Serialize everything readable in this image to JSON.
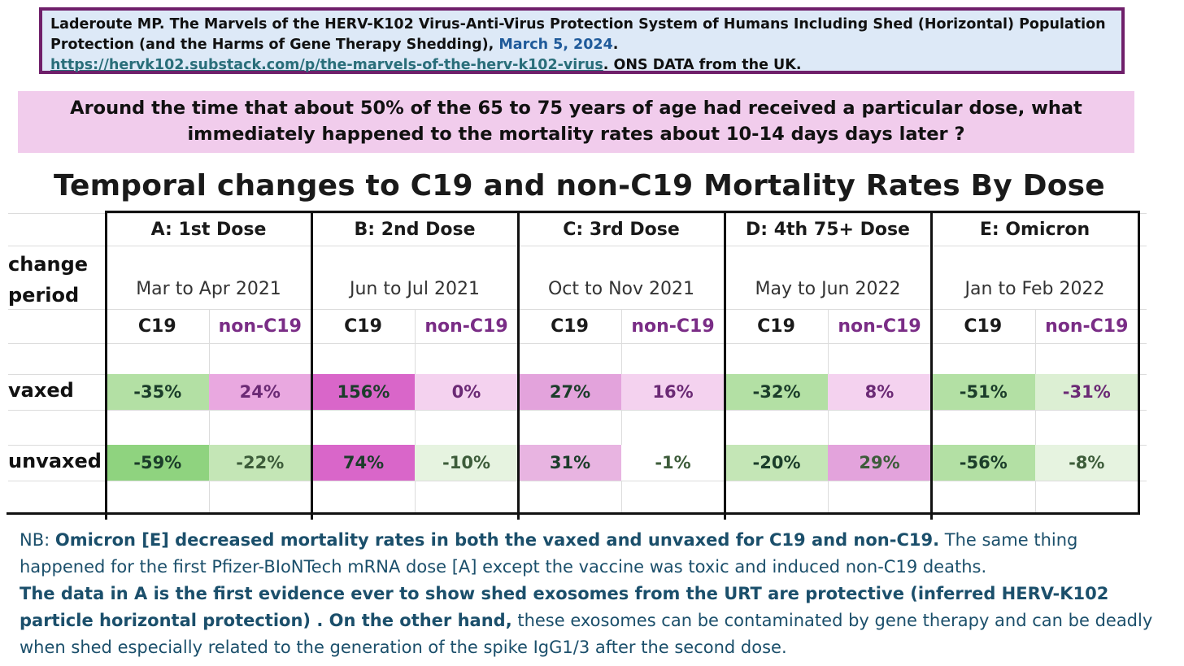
{
  "citation": {
    "text": "Laderoute MP. The Marvels of the HERV-K102 Virus-Anti-Virus Protection System of Humans Including Shed (Horizontal) Population Protection (and the Harms of Gene Therapy Shedding),",
    "date": "March 5, 2024",
    "date_suffix": ".",
    "url": "https://hervk102.substack.com/p/the-marvels-of-the-herv-k102-virus",
    "source": ". ONS DATA from the UK."
  },
  "question": "Around the time that about 50% of the 65 to 75 years of age had received a particular dose, what immediately happened to the mortality rates about 10-14 days days later ?",
  "table": {
    "title": "Temporal  changes to C19 and non-C19 Mortality Rates By Dose",
    "change_label_1": "change",
    "change_label_2": "period",
    "col_c19": "C19",
    "col_non_c19": "non-C19",
    "row_vaxed": "vaxed",
    "row_unvaxed": "unvaxed",
    "groups": [
      {
        "name": "A: 1st Dose",
        "period": "Mar to Apr  2021",
        "vaxed": {
          "c19": "-35%",
          "non_c19": "24%"
        },
        "unvaxed": {
          "c19": "-59%",
          "non_c19": "-22%"
        }
      },
      {
        "name": "B: 2nd Dose",
        "period": "Jun to Jul  2021",
        "vaxed": {
          "c19": "156%",
          "non_c19": "0%"
        },
        "unvaxed": {
          "c19": "74%",
          "non_c19": "-10%"
        }
      },
      {
        "name": "C: 3rd Dose",
        "period": "Oct to Nov  2021",
        "vaxed": {
          "c19": "27%",
          "non_c19": "16%"
        },
        "unvaxed": {
          "c19": "31%",
          "non_c19": "-1%"
        }
      },
      {
        "name": "D: 4th 75+ Dose",
        "period": "May to Jun  2022",
        "vaxed": {
          "c19": "-32%",
          "non_c19": "8%"
        },
        "unvaxed": {
          "c19": "-20%",
          "non_c19": "29%"
        }
      },
      {
        "name": "E: Omicron",
        "period": "Jan to Feb 2022",
        "vaxed": {
          "c19": "-51%",
          "non_c19": "-31%"
        },
        "unvaxed": {
          "c19": "-56%",
          "non_c19": "-8%"
        }
      }
    ],
    "cell_colors": {
      "vaxed_c19": [
        "#b3e0a4",
        "#d966c9",
        "#e3a3dc",
        "#b3e0a4",
        "#b3e0a4"
      ],
      "vaxed_non": [
        "#e9a8e0",
        "#f4d2ef",
        "#f4d2ef",
        "#f4d2ef",
        "#dcefd3"
      ],
      "unvaxed_c19": [
        "#8fd37f",
        "#d966c9",
        "#e8b4e1",
        "#c4e6b6",
        "#b3e0a4"
      ],
      "unvaxed_non": [
        "#c4e6b6",
        "#e6f3e0",
        "#ffffff",
        "#e3a3dc",
        "#e6f3e0"
      ]
    }
  },
  "notes": {
    "p1_prefix": "NB: ",
    "p1_bold": "Omicron [E] decreased mortality rates in both the vaxed and unvaxed for C19 and non-C19.",
    "p1_rest": " The same thing happened for the first Pfizer-BIoNTech mRNA dose [A] except the vaccine was toxic and induced non-C19 deaths.",
    "p2_bold": "The data in A is the first evidence ever to show shed exosomes from the URT are protective (inferred HERV-K102 particle horizontal protection) .  On the other hand,",
    "p2_rest": " these exosomes can be contaminated by gene therapy and can be deadly when shed especially related to the generation of the spike IgG1/3 after the second dose."
  }
}
